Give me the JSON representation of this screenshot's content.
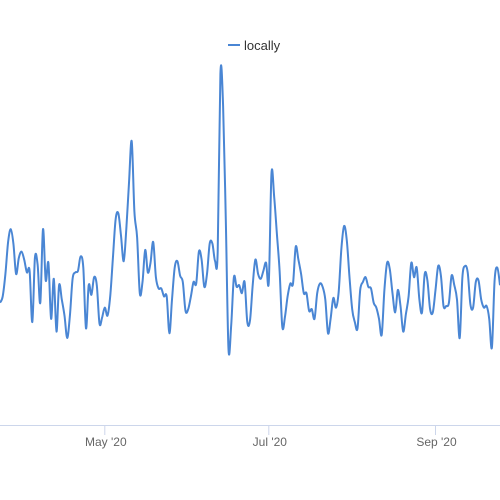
{
  "chart_data": {
    "type": "line",
    "title": "",
    "xlabel": "",
    "ylabel": "",
    "legend": {
      "position": "top-center"
    },
    "grid": false,
    "x_tick_labels": [
      "May '20",
      "Jul '20",
      "Sep '20"
    ],
    "x_range": [
      "2020-03-23",
      "2020-09-25"
    ],
    "series": [
      {
        "name": "locally",
        "color": "#4a86d4",
        "points": [
          [
            "2020-03-23",
            12
          ],
          [
            "2020-03-24",
            16
          ],
          [
            "2020-03-25",
            30
          ],
          [
            "2020-03-26",
            50
          ],
          [
            "2020-03-27",
            58
          ],
          [
            "2020-03-28",
            49
          ],
          [
            "2020-03-29",
            30
          ],
          [
            "2020-03-30",
            40
          ],
          [
            "2020-03-31",
            44
          ],
          [
            "2020-04-01",
            39
          ],
          [
            "2020-04-02",
            31
          ],
          [
            "2020-04-03",
            32
          ],
          [
            "2020-04-04",
            0
          ],
          [
            "2020-04-05",
            40
          ],
          [
            "2020-04-06",
            36
          ],
          [
            "2020-04-07",
            12
          ],
          [
            "2020-04-08",
            58
          ],
          [
            "2020-04-09",
            26
          ],
          [
            "2020-04-10",
            37
          ],
          [
            "2020-04-11",
            2
          ],
          [
            "2020-04-12",
            27
          ],
          [
            "2020-04-13",
            -6
          ],
          [
            "2020-04-14",
            23
          ],
          [
            "2020-04-15",
            14
          ],
          [
            "2020-04-16",
            4
          ],
          [
            "2020-04-17",
            -10
          ],
          [
            "2020-04-18",
            4
          ],
          [
            "2020-04-19",
            27
          ],
          [
            "2020-04-20",
            31
          ],
          [
            "2020-04-21",
            32
          ],
          [
            "2020-04-22",
            41
          ],
          [
            "2020-04-23",
            34
          ],
          [
            "2020-04-24",
            -4
          ],
          [
            "2020-04-25",
            23
          ],
          [
            "2020-04-26",
            17
          ],
          [
            "2020-04-27",
            28
          ],
          [
            "2020-04-28",
            23
          ],
          [
            "2020-04-29",
            -1
          ],
          [
            "2020-04-30",
            3
          ],
          [
            "2020-05-01",
            9
          ],
          [
            "2020-05-02",
            4
          ],
          [
            "2020-05-03",
            16
          ],
          [
            "2020-05-04",
            40
          ],
          [
            "2020-05-05",
            64
          ],
          [
            "2020-05-06",
            68
          ],
          [
            "2020-05-07",
            54
          ],
          [
            "2020-05-08",
            38
          ],
          [
            "2020-05-09",
            58
          ],
          [
            "2020-05-10",
            87
          ],
          [
            "2020-05-11",
            113
          ],
          [
            "2020-05-12",
            69
          ],
          [
            "2020-05-13",
            53
          ],
          [
            "2020-05-14",
            18
          ],
          [
            "2020-05-15",
            25
          ],
          [
            "2020-05-16",
            45
          ],
          [
            "2020-05-17",
            31
          ],
          [
            "2020-05-18",
            37
          ],
          [
            "2020-05-19",
            50
          ],
          [
            "2020-05-20",
            28
          ],
          [
            "2020-05-21",
            21
          ],
          [
            "2020-05-22",
            21
          ],
          [
            "2020-05-23",
            16
          ],
          [
            "2020-05-24",
            16
          ],
          [
            "2020-05-25",
            -7
          ],
          [
            "2020-05-26",
            14
          ],
          [
            "2020-05-27",
            34
          ],
          [
            "2020-05-28",
            38
          ],
          [
            "2020-05-29",
            29
          ],
          [
            "2020-05-30",
            25
          ],
          [
            "2020-05-31",
            7
          ],
          [
            "2020-06-01",
            8
          ],
          [
            "2020-06-02",
            16
          ],
          [
            "2020-06-03",
            25
          ],
          [
            "2020-06-04",
            24
          ],
          [
            "2020-06-05",
            44
          ],
          [
            "2020-06-06",
            39
          ],
          [
            "2020-06-07",
            22
          ],
          [
            "2020-06-08",
            30
          ],
          [
            "2020-06-09",
            49
          ],
          [
            "2020-06-10",
            49
          ],
          [
            "2020-06-11",
            38
          ],
          [
            "2020-06-12",
            44
          ],
          [
            "2020-06-13",
            155
          ],
          [
            "2020-06-14",
            135
          ],
          [
            "2020-06-15",
            64
          ],
          [
            "2020-06-16",
            -17
          ],
          [
            "2020-06-17",
            -2
          ],
          [
            "2020-06-18",
            28
          ],
          [
            "2020-06-19",
            22
          ],
          [
            "2020-06-20",
            23
          ],
          [
            "2020-06-21",
            18
          ],
          [
            "2020-06-22",
            25
          ],
          [
            "2020-06-23",
            0
          ],
          [
            "2020-06-24",
            1
          ],
          [
            "2020-06-25",
            23
          ],
          [
            "2020-06-26",
            39
          ],
          [
            "2020-06-27",
            30
          ],
          [
            "2020-06-28",
            27
          ],
          [
            "2020-06-29",
            32
          ],
          [
            "2020-06-30",
            37
          ],
          [
            "2020-07-01",
            25
          ],
          [
            "2020-07-02",
            93
          ],
          [
            "2020-07-03",
            78
          ],
          [
            "2020-07-04",
            55
          ],
          [
            "2020-07-05",
            32
          ],
          [
            "2020-07-06",
            -3
          ],
          [
            "2020-07-07",
            3
          ],
          [
            "2020-07-08",
            16
          ],
          [
            "2020-07-09",
            24
          ],
          [
            "2020-07-10",
            24
          ],
          [
            "2020-07-11",
            47
          ],
          [
            "2020-07-12",
            39
          ],
          [
            "2020-07-13",
            30
          ],
          [
            "2020-07-14",
            18
          ],
          [
            "2020-07-15",
            18
          ],
          [
            "2020-07-16",
            7
          ],
          [
            "2020-07-17",
            8
          ],
          [
            "2020-07-18",
            2
          ],
          [
            "2020-07-19",
            18
          ],
          [
            "2020-07-20",
            24
          ],
          [
            "2020-07-21",
            22
          ],
          [
            "2020-07-22",
            14
          ],
          [
            "2020-07-23",
            -7
          ],
          [
            "2020-07-24",
            2
          ],
          [
            "2020-07-25",
            15
          ],
          [
            "2020-07-26",
            9
          ],
          [
            "2020-07-27",
            19
          ],
          [
            "2020-07-28",
            46
          ],
          [
            "2020-07-29",
            60
          ],
          [
            "2020-07-30",
            51
          ],
          [
            "2020-07-31",
            28
          ],
          [
            "2020-08-01",
            8
          ],
          [
            "2020-08-02",
            0
          ],
          [
            "2020-08-03",
            -4
          ],
          [
            "2020-08-04",
            20
          ],
          [
            "2020-08-05",
            25
          ],
          [
            "2020-08-06",
            28
          ],
          [
            "2020-08-07",
            22
          ],
          [
            "2020-08-08",
            21
          ],
          [
            "2020-08-09",
            12
          ],
          [
            "2020-08-10",
            9
          ],
          [
            "2020-08-11",
            2
          ],
          [
            "2020-08-12",
            -8
          ],
          [
            "2020-08-13",
            20
          ],
          [
            "2020-08-14",
            37
          ],
          [
            "2020-08-15",
            33
          ],
          [
            "2020-08-16",
            18
          ],
          [
            "2020-08-17",
            6
          ],
          [
            "2020-08-18",
            20
          ],
          [
            "2020-08-19",
            10
          ],
          [
            "2020-08-20",
            -6
          ],
          [
            "2020-08-21",
            5
          ],
          [
            "2020-08-22",
            16
          ],
          [
            "2020-08-23",
            37
          ],
          [
            "2020-08-24",
            28
          ],
          [
            "2020-08-25",
            34
          ],
          [
            "2020-08-26",
            14
          ],
          [
            "2020-08-27",
            6
          ],
          [
            "2020-08-28",
            30
          ],
          [
            "2020-08-29",
            26
          ],
          [
            "2020-08-30",
            8
          ],
          [
            "2020-08-31",
            6
          ],
          [
            "2020-09-01",
            20
          ],
          [
            "2020-09-02",
            35
          ],
          [
            "2020-09-03",
            29
          ],
          [
            "2020-09-04",
            10
          ],
          [
            "2020-09-05",
            10
          ],
          [
            "2020-09-06",
            12
          ],
          [
            "2020-09-07",
            29
          ],
          [
            "2020-09-08",
            23
          ],
          [
            "2020-09-09",
            14
          ],
          [
            "2020-09-10",
            -10
          ],
          [
            "2020-09-11",
            28
          ],
          [
            "2020-09-12",
            35
          ],
          [
            "2020-09-13",
            31
          ],
          [
            "2020-09-14",
            11
          ],
          [
            "2020-09-15",
            9
          ],
          [
            "2020-09-16",
            25
          ],
          [
            "2020-09-17",
            26
          ],
          [
            "2020-09-18",
            14
          ],
          [
            "2020-09-19",
            9
          ],
          [
            "2020-09-20",
            10
          ],
          [
            "2020-09-21",
            2
          ],
          [
            "2020-09-22",
            -16
          ],
          [
            "2020-09-23",
            26
          ],
          [
            "2020-09-24",
            34
          ],
          [
            "2020-09-25",
            23
          ]
        ]
      }
    ]
  }
}
